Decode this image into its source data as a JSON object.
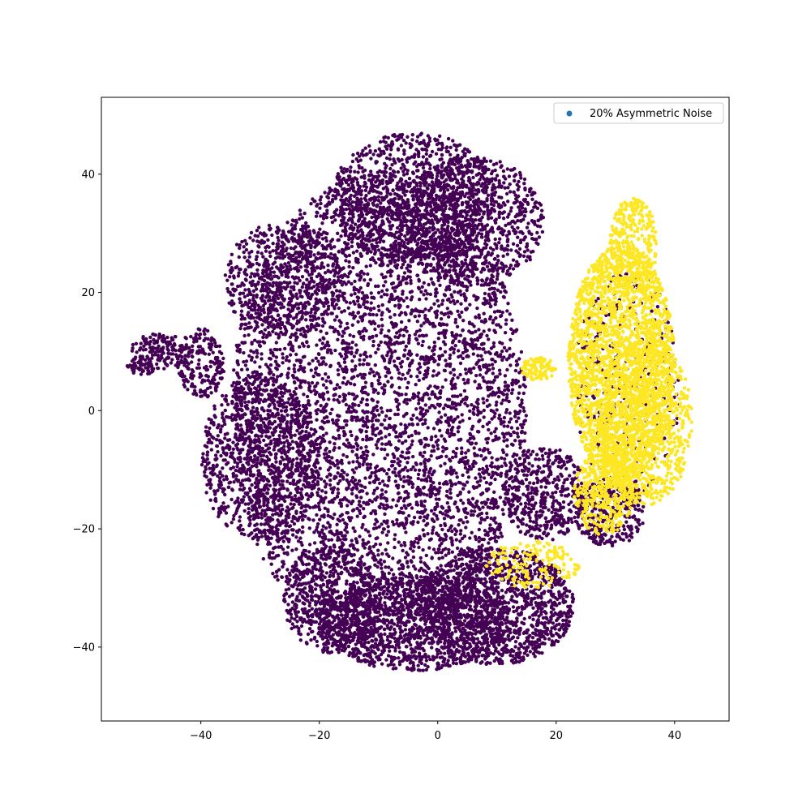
{
  "chart_data": {
    "type": "scatter",
    "title": "",
    "xlabel": "",
    "ylabel": "",
    "xlim": [
      -56.8,
      49.2
    ],
    "ylim": [
      -52.5,
      53.0
    ],
    "xticks": [
      -40,
      -20,
      0,
      20,
      40
    ],
    "yticks": [
      -40,
      -20,
      0,
      20,
      40
    ],
    "xtick_labels": [
      "−40",
      "−20",
      "0",
      "20",
      "40"
    ],
    "ytick_labels": [
      "−40",
      "−20",
      "0",
      "20",
      "40"
    ],
    "grid": false,
    "legend": {
      "position": "top-right",
      "entries": [
        {
          "label": "20% Asymmetric Noise",
          "color": "#1f77b4"
        }
      ]
    },
    "colors": {
      "class_0": "#440154",
      "class_1": "#fde725",
      "legend_marker": "#1f77b4"
    },
    "series": [
      {
        "color": "#440154",
        "regions": [
          {
            "kind": "ellipse",
            "cx": -10,
            "cy": 0,
            "rx": 25,
            "ry": 40,
            "n": 5200
          },
          {
            "kind": "ellipse",
            "cx": -4,
            "cy": 36,
            "rx": 14,
            "ry": 11,
            "n": 1100
          },
          {
            "kind": "ellipse",
            "cx": 6,
            "cy": 32,
            "rx": 12,
            "ry": 11,
            "n": 800
          },
          {
            "kind": "ellipse",
            "cx": -26,
            "cy": 22,
            "rx": 10,
            "ry": 10,
            "n": 600
          },
          {
            "kind": "ellipse",
            "cx": -30,
            "cy": -8,
            "rx": 10,
            "ry": 14,
            "n": 900
          },
          {
            "kind": "ellipse",
            "cx": -40,
            "cy": 8,
            "rx": 4,
            "ry": 6,
            "n": 200
          },
          {
            "kind": "ellipse",
            "cx": -47,
            "cy": 10,
            "rx": 5,
            "ry": 3,
            "n": 160
          },
          {
            "kind": "ellipse",
            "cx": -50,
            "cy": 7.5,
            "rx": 2.5,
            "ry": 1.5,
            "n": 40
          },
          {
            "kind": "ellipse",
            "cx": -4,
            "cy": -36,
            "rx": 16,
            "ry": 8,
            "n": 1200
          },
          {
            "kind": "ellipse",
            "cx": 10,
            "cy": -33,
            "rx": 13,
            "ry": 10,
            "n": 1300
          },
          {
            "kind": "ellipse",
            "cx": -18,
            "cy": -32,
            "rx": 8,
            "ry": 9,
            "n": 500
          },
          {
            "kind": "ellipse",
            "cx": 18,
            "cy": -14,
            "rx": 7,
            "ry": 8,
            "n": 450
          },
          {
            "kind": "ellipse",
            "cx": 29,
            "cy": -17,
            "rx": 6,
            "ry": 6,
            "n": 350
          },
          {
            "kind": "ellipse",
            "cx": 32,
            "cy": 4,
            "rx": 9,
            "ry": 20,
            "n": 330
          },
          {
            "kind": "ellipse",
            "cx": 9,
            "cy": -16,
            "rx": 1.5,
            "ry": 0.8,
            "n": 10
          }
        ]
      },
      {
        "color": "#fde725",
        "regions": [
          {
            "kind": "ellipse",
            "cx": 31,
            "cy": 8,
            "rx": 9,
            "ry": 20,
            "n": 2400
          },
          {
            "kind": "ellipse",
            "cx": 35,
            "cy": -2,
            "rx": 8,
            "ry": 14,
            "n": 900
          },
          {
            "kind": "ellipse",
            "cx": 33,
            "cy": 28,
            "rx": 4,
            "ry": 8,
            "n": 300
          },
          {
            "kind": "ellipse",
            "cx": 17,
            "cy": 7,
            "rx": 3,
            "ry": 2,
            "n": 100
          },
          {
            "kind": "ellipse",
            "cx": 28,
            "cy": -14,
            "rx": 5,
            "ry": 7,
            "n": 400
          },
          {
            "kind": "ellipse",
            "cx": 16,
            "cy": -26,
            "rx": 8,
            "ry": 4,
            "n": 170
          }
        ]
      }
    ]
  }
}
